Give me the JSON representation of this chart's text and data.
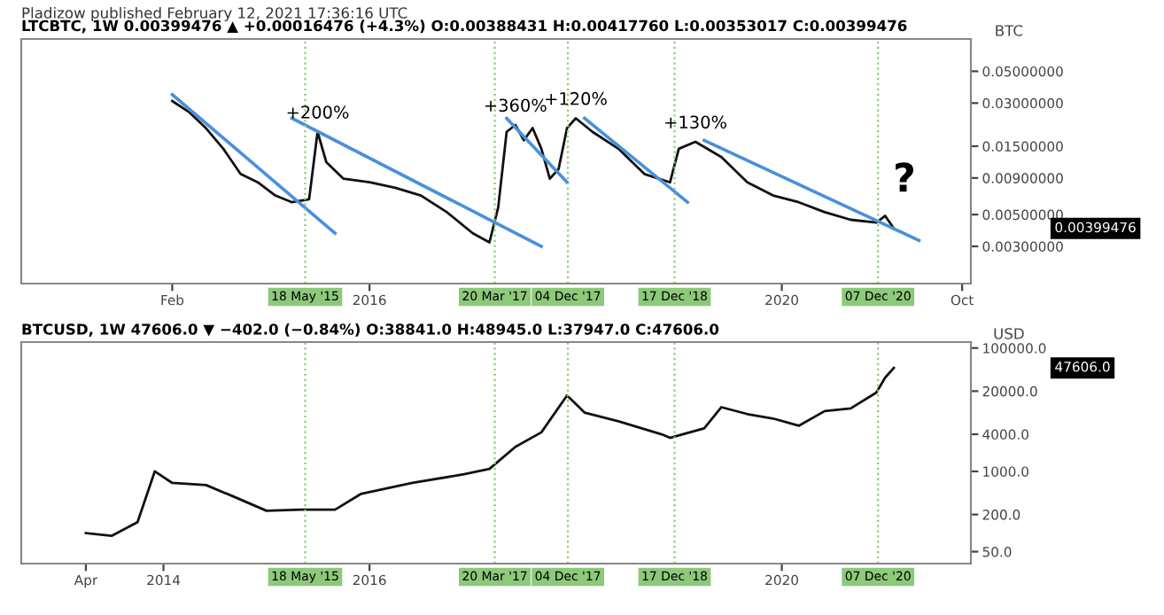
{
  "chart_data": [
    {
      "type": "line",
      "title": "LTCBTC, 1W 0.00399476 ▲ +0.00016476 (+4.3%) O:0.00388431 H:0.00417760 L:0.00353017 C:0.00399476",
      "ylabel": "BTC",
      "log": "y",
      "grid": false,
      "legend": false,
      "xlim": [
        "2012-08-15",
        "2021-11-01"
      ],
      "ylim": [
        0.00165,
        0.084
      ],
      "xticks": [
        {
          "value": "2014-02-01",
          "label": "Feb"
        },
        {
          "value": "2016-01-01",
          "label": "2016"
        },
        {
          "value": "2020-01-01",
          "label": "2020"
        },
        {
          "value": "2021-10-01",
          "label": "Oct"
        }
      ],
      "yticks": [
        {
          "value": 0.05,
          "label": "0.05000000"
        },
        {
          "value": 0.03,
          "label": "0.03000000"
        },
        {
          "value": 0.015,
          "label": "0.01500000"
        },
        {
          "value": 0.009,
          "label": "0.00900000"
        },
        {
          "value": 0.005,
          "label": "0.00500000"
        },
        {
          "value": 0.003,
          "label": "0.00300000"
        }
      ],
      "series": [
        {
          "color": "#111111",
          "x": [
            "2014-02",
            "2014-04",
            "2014-06",
            "2014-08",
            "2014-10",
            "2014-12",
            "2015-02",
            "2015-04",
            "2015-06",
            "2015-07",
            "2015-08",
            "2015-10",
            "2016-01",
            "2016-04",
            "2016-07",
            "2016-10",
            "2017-01",
            "2017-03",
            "2017-04",
            "2017-05",
            "2017-06",
            "2017-07",
            "2017-08",
            "2017-09",
            "2017-10",
            "2017-11",
            "2017-12",
            "2018-01",
            "2018-03",
            "2018-06",
            "2018-09",
            "2018-12",
            "2019-01",
            "2019-03",
            "2019-06",
            "2019-09",
            "2019-12",
            "2020-03",
            "2020-06",
            "2020-09",
            "2020-12",
            "2021-01",
            "2021-02"
          ],
          "values": [
            0.031,
            0.026,
            0.02,
            0.0144,
            0.0096,
            0.0084,
            0.0068,
            0.0061,
            0.0064,
            0.0189,
            0.0116,
            0.0089,
            0.0084,
            0.0077,
            0.0068,
            0.0052,
            0.0037,
            0.0032,
            0.0056,
            0.0189,
            0.0211,
            0.0165,
            0.0201,
            0.0144,
            0.0089,
            0.0104,
            0.0201,
            0.0235,
            0.0189,
            0.0144,
            0.0096,
            0.0084,
            0.0144,
            0.0161,
            0.0126,
            0.0084,
            0.0068,
            0.0061,
            0.0052,
            0.0046,
            0.0044,
            0.0049,
            0.004
          ]
        },
        {
          "color": "#4a90d9",
          "x": [
            "2014-02",
            "2015-09"
          ],
          "values": [
            0.0344,
            0.0037
          ]
        },
        {
          "color": "#4a90d9",
          "x": [
            "2015-04",
            "2017-09"
          ],
          "values": [
            0.0235,
            0.003
          ]
        },
        {
          "color": "#4a90d9",
          "x": [
            "2017-05",
            "2017-12"
          ],
          "values": [
            0.0235,
            0.0084
          ]
        },
        {
          "color": "#4a90d9",
          "x": [
            "2018-02",
            "2019-02"
          ],
          "values": [
            0.0235,
            0.0061
          ]
        },
        {
          "color": "#4a90d9",
          "x": [
            "2019-04",
            "2021-05"
          ],
          "values": [
            0.0165,
            0.0033
          ]
        }
      ],
      "ref_lines": [
        {
          "axis": "x",
          "value": "2015-05-18",
          "label": "18 May '15",
          "color": "#8cc97a",
          "line_style": "dotted"
        },
        {
          "axis": "x",
          "value": "2017-03-20",
          "label": "20 Mar '17",
          "color": "#8cc97a",
          "line_style": "dotted"
        },
        {
          "axis": "x",
          "value": "2017-12-04",
          "label": "04 Dec '17",
          "color": "#8cc97a",
          "line_style": "dotted"
        },
        {
          "axis": "x",
          "value": "2018-12-17",
          "label": "17 Dec '18",
          "color": "#8cc97a",
          "line_style": "dotted"
        },
        {
          "axis": "x",
          "value": "2020-12-07",
          "label": "07 Dec '20",
          "color": "#8cc97a",
          "line_style": "dotted"
        }
      ],
      "annotations": [
        "Pladizow published February 12, 2021 17:36:16 UTC",
        {
          "text": "+200%",
          "x": "2015-07",
          "y": 0.0189
        },
        {
          "text": "+360%",
          "x": "2017-06",
          "y": 0.0211
        },
        {
          "text": "+120%",
          "x": "2018-01",
          "y": 0.0235
        },
        {
          "text": "+130%",
          "x": "2019-03",
          "y": 0.0161
        },
        "?",
        "0.00399476"
      ]
    },
    {
      "type": "line",
      "title": "BTCUSD, 1W 47606.0 ▼ −402.0 (−0.84%) O:38841.0 H:48945.0 L:37947.0 C:47606.0",
      "ylabel": "USD",
      "log": "y",
      "grid": false,
      "legend": false,
      "xlim": [
        "2012-08-15",
        "2021-11-01"
      ],
      "ylim": [
        32,
        125000
      ],
      "xticks": [
        {
          "value": "2013-04-01",
          "label": "Apr"
        },
        {
          "value": "2014-01-01",
          "label": "2014"
        },
        {
          "value": "2016-01-01",
          "label": "2016"
        },
        {
          "value": "2020-01-01",
          "label": "2020"
        }
      ],
      "yticks": [
        {
          "value": 100000,
          "label": "100000.0"
        },
        {
          "value": 20000,
          "label": "20000.0"
        },
        {
          "value": 4000,
          "label": "4000.0"
        },
        {
          "value": 1000,
          "label": "1000.0"
        },
        {
          "value": 200,
          "label": "200.0"
        },
        {
          "value": 50,
          "label": "50.0"
        }
      ],
      "series": [
        {
          "color": "#111111",
          "x": [
            "2013-04",
            "2013-07",
            "2013-10",
            "2013-12",
            "2014-02",
            "2014-06",
            "2014-09",
            "2015-01",
            "2015-05",
            "2015-09",
            "2015-12",
            "2016-06",
            "2016-12",
            "2017-03",
            "2017-06",
            "2017-09",
            "2017-12",
            "2018-02",
            "2018-06",
            "2018-11",
            "2018-12",
            "2019-04",
            "2019-06",
            "2019-09",
            "2019-12",
            "2020-03",
            "2020-06",
            "2020-09",
            "2020-12",
            "2021-01",
            "2021-02"
          ],
          "values": [
            100,
            90,
            150,
            1000,
            650,
            600,
            400,
            230,
            240,
            240,
            430,
            650,
            900,
            1100,
            2500,
            4300,
            17000,
            9000,
            6500,
            4000,
            3500,
            5000,
            11000,
            8500,
            7200,
            5500,
            9500,
            10500,
            19000,
            33000,
            47606
          ]
        }
      ],
      "ref_lines": [
        {
          "axis": "x",
          "value": "2015-05-18",
          "label": "18 May '15",
          "color": "#8cc97a",
          "line_style": "dotted"
        },
        {
          "axis": "x",
          "value": "2017-03-20",
          "label": "20 Mar '17",
          "color": "#8cc97a",
          "line_style": "dotted"
        },
        {
          "axis": "x",
          "value": "2017-12-04",
          "label": "04 Dec '17",
          "color": "#8cc97a",
          "line_style": "dotted"
        },
        {
          "axis": "x",
          "value": "2018-12-17",
          "label": "17 Dec '18",
          "color": "#8cc97a",
          "line_style": "dotted"
        },
        {
          "axis": "x",
          "value": "2020-12-07",
          "label": "07 Dec '20",
          "color": "#8cc97a",
          "line_style": "dotted"
        }
      ],
      "annotations": [
        "47606.0"
      ]
    }
  ]
}
